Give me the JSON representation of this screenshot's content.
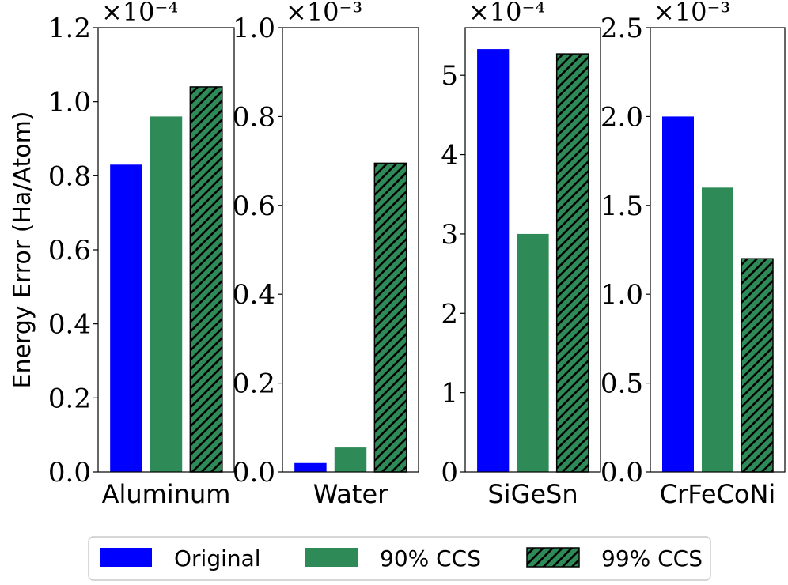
{
  "figure": {
    "ylabel": "Energy Error (Ha/Atom)"
  },
  "colors": {
    "original": "#0000ff",
    "ccs90": "#2e8b57",
    "ccs99": "#2e8b57",
    "hatch": "#000000",
    "axis": "#000000"
  },
  "legend": {
    "placement": "bottom-center",
    "entries": [
      {
        "name": "Original",
        "style": "solid-blue"
      },
      {
        "name": "90% CCS",
        "style": "solid-green"
      },
      {
        "name": "99% CCS",
        "style": "hatched-green"
      }
    ]
  },
  "chart_data": [
    {
      "type": "bar",
      "title": "",
      "xlabel": "Aluminum",
      "ylabel": "Energy Error (Ha/Atom)",
      "multiplier": "×10⁻⁴",
      "ylim": [
        0,
        1.2
      ],
      "ticks": [
        0.0,
        0.2,
        0.4,
        0.6,
        0.8,
        1.0,
        1.2
      ],
      "tick_labels": [
        "0.0",
        "0.2",
        "0.4",
        "0.6",
        "0.8",
        "1.0",
        "1.2"
      ],
      "categories": [
        "Original",
        "90% CCS",
        "99% CCS"
      ],
      "values": [
        0.83,
        0.96,
        1.04
      ]
    },
    {
      "type": "bar",
      "title": "",
      "xlabel": "Water",
      "ylabel": "Energy Error (Ha/Atom)",
      "multiplier": "×10⁻³",
      "ylim": [
        0,
        1.0
      ],
      "ticks": [
        0.0,
        0.2,
        0.4,
        0.6,
        0.8,
        1.0
      ],
      "tick_labels": [
        "0.0",
        "0.2",
        "0.4",
        "0.6",
        "0.8",
        "1.0"
      ],
      "categories": [
        "Original",
        "90% CCS",
        "99% CCS"
      ],
      "values": [
        0.02,
        0.055,
        0.695
      ]
    },
    {
      "type": "bar",
      "title": "",
      "xlabel": "SiGeSn",
      "ylabel": "Energy Error (Ha/Atom)",
      "multiplier": "×10⁻⁴",
      "ylim": [
        0,
        5.6
      ],
      "ticks": [
        0,
        1,
        2,
        3,
        4,
        5
      ],
      "tick_labels": [
        "0",
        "1",
        "2",
        "3",
        "4",
        "5"
      ],
      "categories": [
        "Original",
        "90% CCS",
        "99% CCS"
      ],
      "values": [
        5.33,
        3.0,
        5.27
      ]
    },
    {
      "type": "bar",
      "title": "",
      "xlabel": "CrFeCoNi",
      "ylabel": "Energy Error (Ha/Atom)",
      "multiplier": "×10⁻³",
      "ylim": [
        0,
        2.5
      ],
      "ticks": [
        0.0,
        0.5,
        1.0,
        1.5,
        2.0,
        2.5
      ],
      "tick_labels": [
        "0.0",
        "0.5",
        "1.0",
        "1.5",
        "2.0",
        "2.5"
      ],
      "categories": [
        "Original",
        "90% CCS",
        "99% CCS"
      ],
      "values": [
        2.0,
        1.6,
        1.2
      ]
    }
  ]
}
